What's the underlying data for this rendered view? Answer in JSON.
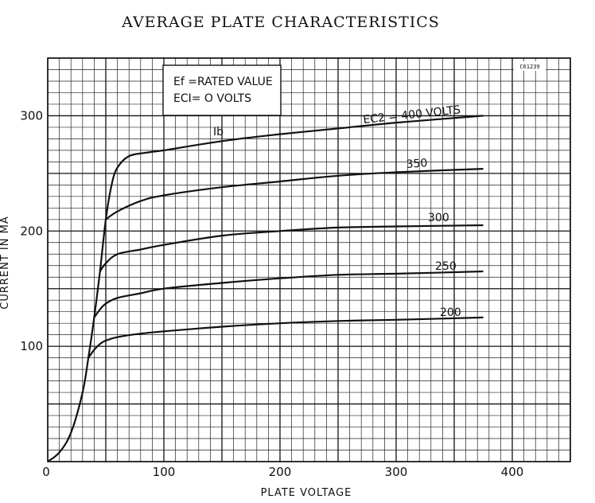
{
  "chart_data": {
    "type": "line",
    "title": "AVERAGE PLATE CHARACTERISTICS",
    "xlabel": "PLATE VOLTAGE",
    "ylabel": "CURRENT IN MA",
    "xlim": [
      0,
      450
    ],
    "ylim": [
      0,
      350
    ],
    "xticks": [
      0,
      100,
      200,
      300,
      400
    ],
    "yticks": [
      100,
      200,
      300
    ],
    "grid": true,
    "code": "C61239",
    "conditions": [
      "Ef =RATED  VALUE",
      "ECI= O  VOLTS"
    ],
    "envelope_label": "Ib",
    "envelope": [
      [
        0,
        0
      ],
      [
        10,
        8
      ],
      [
        20,
        25
      ],
      [
        30,
        60
      ],
      [
        35,
        90
      ],
      [
        40,
        125
      ],
      [
        45,
        165
      ],
      [
        50,
        210
      ],
      [
        55,
        240
      ],
      [
        60,
        255
      ],
      [
        70,
        265
      ],
      [
        85,
        268
      ],
      [
        100,
        270
      ]
    ],
    "series": [
      {
        "name": "EC2 = 400 VOLTS",
        "x": [
          100,
          150,
          200,
          250,
          300,
          375
        ],
        "y": [
          270,
          278,
          284,
          289,
          294,
          300
        ]
      },
      {
        "name": "350",
        "x": [
          50,
          60,
          80,
          100,
          150,
          200,
          250,
          300,
          375
        ],
        "y": [
          210,
          217,
          226,
          231,
          238,
          243,
          248,
          251,
          254
        ]
      },
      {
        "name": "300",
        "x": [
          45,
          50,
          60,
          80,
          100,
          150,
          200,
          250,
          300,
          375
        ],
        "y": [
          165,
          172,
          180,
          184,
          188,
          196,
          200,
          203,
          204,
          205
        ]
      },
      {
        "name": "250",
        "x": [
          40,
          45,
          50,
          60,
          80,
          100,
          150,
          200,
          250,
          300,
          375
        ],
        "y": [
          125,
          132,
          137,
          142,
          146,
          150,
          155,
          159,
          162,
          163,
          165
        ]
      },
      {
        "name": "200",
        "x": [
          35,
          40,
          45,
          50,
          60,
          80,
          100,
          150,
          200,
          250,
          300,
          375
        ],
        "y": [
          90,
          97,
          102,
          105,
          108,
          111,
          113,
          117,
          120,
          122,
          123,
          125
        ]
      }
    ]
  }
}
